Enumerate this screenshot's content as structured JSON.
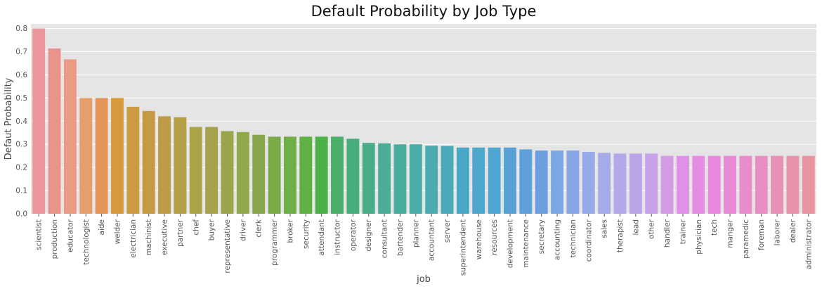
{
  "chart_data": {
    "type": "bar",
    "title": "Default Probability by Job Type",
    "xlabel": "job",
    "ylabel": "Defaut Probability",
    "ylim": [
      0,
      0.82
    ],
    "yticks": [
      "0.0",
      "0.1",
      "0.2",
      "0.3",
      "0.4",
      "0.5",
      "0.6",
      "0.7",
      "0.8"
    ],
    "grid": true,
    "categories": [
      "scientist",
      "production",
      "educator",
      "technologist",
      "aide",
      "welder",
      "electrician",
      "machinist",
      "executive",
      "partner",
      "chef",
      "buyer",
      "representative",
      "driver",
      "clerk",
      "programmer",
      "broker",
      "security",
      "attendant",
      "instructor",
      "operator",
      "designer",
      "consultant",
      "bartender",
      "planner",
      "accountant",
      "server",
      "superintendent",
      "warehouse",
      "resources",
      "development",
      "maintenance",
      "secretary",
      "accounting",
      "technician",
      "coordinator",
      "sales",
      "therapist",
      "lead",
      "other",
      "handler",
      "trainer",
      "physician",
      "tech",
      "manger",
      "paramedic",
      "foreman",
      "laborer",
      "dealer",
      "administrator"
    ],
    "values": [
      0.8,
      0.714,
      0.667,
      0.5,
      0.5,
      0.5,
      0.462,
      0.444,
      0.421,
      0.417,
      0.375,
      0.375,
      0.357,
      0.353,
      0.341,
      0.333,
      0.333,
      0.333,
      0.333,
      0.333,
      0.324,
      0.306,
      0.304,
      0.3,
      0.3,
      0.294,
      0.293,
      0.286,
      0.286,
      0.286,
      0.286,
      0.278,
      0.273,
      0.273,
      0.273,
      0.267,
      0.263,
      0.26,
      0.26,
      0.26,
      0.25,
      0.25,
      0.25,
      0.25,
      0.25,
      0.25,
      0.25,
      0.25,
      0.25,
      0.25
    ],
    "colors": [
      "#ea969b",
      "#ea938a",
      "#e99b86",
      "#e59e6e",
      "#e6955a",
      "#d79a3d",
      "#cc9a41",
      "#c69a43",
      "#bf9a45",
      "#b59f47",
      "#ada349",
      "#a6a24b",
      "#9aa54c",
      "#91a84b",
      "#87a84a",
      "#79ab48",
      "#70ae47",
      "#5fb146",
      "#4cb248",
      "#48ae69",
      "#48ad7c",
      "#4aad87",
      "#4aad95",
      "#4aac9e",
      "#4aaca7",
      "#4babaf",
      "#4aaab8",
      "#4aa8c4",
      "#4ba7cb",
      "#4fa5d1",
      "#56a2d7",
      "#5ea0dc",
      "#6b9fe0",
      "#7da7e6",
      "#86a6e8",
      "#96aaea",
      "#a6aae9",
      "#b2a8ea",
      "#bba6ea",
      "#c6a2ea",
      "#d59be7",
      "#e091e6",
      "#e68ce3",
      "#e78ade",
      "#e889d6",
      "#e88ccc",
      "#e78fc1",
      "#e791b6",
      "#e893ab",
      "#e894a1"
    ],
    "background": "#e5e5e5",
    "grid_color": "#ffffff"
  }
}
